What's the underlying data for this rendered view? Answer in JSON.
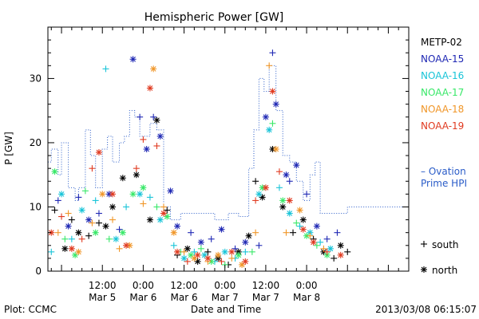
{
  "chart_data": {
    "type": "scatter",
    "title": "Hemispheric Power [GW]",
    "ylabel": "P [GW]",
    "xlabel": "Date and Time",
    "footer_left": "Plot: CCMC",
    "footer_right": "2013/03/08 06:15:07",
    "ylim": [
      0,
      38
    ],
    "xlim_hours": [
      -16,
      90
    ],
    "y_ticks": [
      0,
      10,
      20,
      30
    ],
    "x_ticks": [
      {
        "h": 0,
        "top": "12:00",
        "bottom": "Mar 5"
      },
      {
        "h": 12,
        "top": "0:00",
        "bottom": "Mar 6"
      },
      {
        "h": 24,
        "top": "12:00",
        "bottom": "Mar 6"
      },
      {
        "h": 36,
        "top": "0:00",
        "bottom": "Mar 7"
      },
      {
        "h": 48,
        "top": "12:00",
        "bottom": "Mar 7"
      },
      {
        "h": 60,
        "top": "0:00",
        "bottom": "Mar 8"
      }
    ],
    "grid": false,
    "legend_position": "right",
    "series": [
      {
        "name": "METP-02",
        "color": "#000000",
        "points": [
          {
            "x": -14,
            "y": 9.5,
            "m": "plus"
          },
          {
            "x": -11,
            "y": 3.5,
            "m": "star"
          },
          {
            "x": -9,
            "y": 8,
            "m": "plus"
          },
          {
            "x": -7,
            "y": 6,
            "m": "star"
          },
          {
            "x": -4,
            "y": 5.5,
            "m": "plus"
          },
          {
            "x": -1,
            "y": 7.5,
            "m": "plus"
          },
          {
            "x": 1,
            "y": 7,
            "m": "star"
          },
          {
            "x": 3,
            "y": 10,
            "m": "star"
          },
          {
            "x": 6,
            "y": 14.5,
            "m": "star"
          },
          {
            "x": 10,
            "y": 15,
            "m": "star"
          },
          {
            "x": 14,
            "y": 8,
            "m": "star"
          },
          {
            "x": 16,
            "y": 23.5,
            "m": "star"
          },
          {
            "x": 19,
            "y": 9.5,
            "m": "plus"
          },
          {
            "x": 22,
            "y": 2.5,
            "m": "plus"
          },
          {
            "x": 25,
            "y": 3.5,
            "m": "star"
          },
          {
            "x": 28,
            "y": 1.5,
            "m": "star"
          },
          {
            "x": 31,
            "y": 3,
            "m": "plus"
          },
          {
            "x": 34,
            "y": 2,
            "m": "star"
          },
          {
            "x": 37,
            "y": 1,
            "m": "plus"
          },
          {
            "x": 40,
            "y": 3,
            "m": "star"
          },
          {
            "x": 43,
            "y": 5.5,
            "m": "star"
          },
          {
            "x": 45,
            "y": 14,
            "m": "plus"
          },
          {
            "x": 47,
            "y": 11.5,
            "m": "star"
          },
          {
            "x": 50,
            "y": 19,
            "m": "star"
          },
          {
            "x": 53,
            "y": 10,
            "m": "star"
          },
          {
            "x": 56,
            "y": 6,
            "m": "plus"
          },
          {
            "x": 59,
            "y": 8,
            "m": "star"
          },
          {
            "x": 62,
            "y": 5,
            "m": "plus"
          },
          {
            "x": 65,
            "y": 3,
            "m": "star"
          },
          {
            "x": 68,
            "y": 2,
            "m": "plus"
          },
          {
            "x": 70,
            "y": 4,
            "m": "star"
          },
          {
            "x": 72,
            "y": 3,
            "m": "plus"
          }
        ]
      },
      {
        "name": "NOAA-15",
        "color": "#1f28b4",
        "points": [
          {
            "x": -13,
            "y": 11,
            "m": "plus"
          },
          {
            "x": -10,
            "y": 7,
            "m": "star"
          },
          {
            "x": -7,
            "y": 11.5,
            "m": "plus"
          },
          {
            "x": -4,
            "y": 8,
            "m": "star"
          },
          {
            "x": -1,
            "y": 9,
            "m": "plus"
          },
          {
            "x": 2,
            "y": 12,
            "m": "star"
          },
          {
            "x": 5,
            "y": 6.5,
            "m": "plus"
          },
          {
            "x": 9,
            "y": 33,
            "m": "star"
          },
          {
            "x": 11,
            "y": 24,
            "m": "plus"
          },
          {
            "x": 13,
            "y": 19,
            "m": "star"
          },
          {
            "x": 15,
            "y": 24,
            "m": "plus"
          },
          {
            "x": 17,
            "y": 21,
            "m": "star"
          },
          {
            "x": 20,
            "y": 12.5,
            "m": "star"
          },
          {
            "x": 22,
            "y": 7,
            "m": "star"
          },
          {
            "x": 26,
            "y": 6,
            "m": "plus"
          },
          {
            "x": 29,
            "y": 4.5,
            "m": "star"
          },
          {
            "x": 32,
            "y": 5,
            "m": "plus"
          },
          {
            "x": 35,
            "y": 6.5,
            "m": "star"
          },
          {
            "x": 39,
            "y": 3.5,
            "m": "plus"
          },
          {
            "x": 42,
            "y": 4.5,
            "m": "star"
          },
          {
            "x": 46,
            "y": 4,
            "m": "plus"
          },
          {
            "x": 48,
            "y": 24,
            "m": "star"
          },
          {
            "x": 50,
            "y": 34,
            "m": "plus"
          },
          {
            "x": 51,
            "y": 26,
            "m": "star"
          },
          {
            "x": 54,
            "y": 15,
            "m": "star"
          },
          {
            "x": 55,
            "y": 14,
            "m": "plus"
          },
          {
            "x": 57,
            "y": 16.5,
            "m": "star"
          },
          {
            "x": 60,
            "y": 12,
            "m": "plus"
          },
          {
            "x": 63,
            "y": 7,
            "m": "star"
          },
          {
            "x": 66,
            "y": 5,
            "m": "plus"
          },
          {
            "x": 69,
            "y": 6,
            "m": "plus"
          }
        ]
      },
      {
        "name": "NOAA-16",
        "color": "#18c4d8",
        "points": [
          {
            "x": -15,
            "y": 3,
            "m": "plus"
          },
          {
            "x": -12,
            "y": 12,
            "m": "star"
          },
          {
            "x": -9,
            "y": 5,
            "m": "plus"
          },
          {
            "x": -6,
            "y": 9.5,
            "m": "star"
          },
          {
            "x": -2,
            "y": 11,
            "m": "plus"
          },
          {
            "x": 1,
            "y": 31.5,
            "m": "plus"
          },
          {
            "x": 4,
            "y": 5,
            "m": "star"
          },
          {
            "x": 7,
            "y": 10,
            "m": "plus"
          },
          {
            "x": 11,
            "y": 12,
            "m": "star"
          },
          {
            "x": 14,
            "y": 11.5,
            "m": "plus"
          },
          {
            "x": 17,
            "y": 8,
            "m": "star"
          },
          {
            "x": 21,
            "y": 4,
            "m": "plus"
          },
          {
            "x": 24,
            "y": 2,
            "m": "star"
          },
          {
            "x": 27,
            "y": 3,
            "m": "plus"
          },
          {
            "x": 30,
            "y": 2.5,
            "m": "star"
          },
          {
            "x": 33,
            "y": 1.5,
            "m": "plus"
          },
          {
            "x": 36,
            "y": 3,
            "m": "star"
          },
          {
            "x": 39,
            "y": 2,
            "m": "plus"
          },
          {
            "x": 42,
            "y": 3,
            "m": "plus"
          },
          {
            "x": 46,
            "y": 12,
            "m": "star"
          },
          {
            "x": 49,
            "y": 22,
            "m": "star"
          },
          {
            "x": 52,
            "y": 13,
            "m": "plus"
          },
          {
            "x": 55,
            "y": 9,
            "m": "star"
          },
          {
            "x": 58,
            "y": 7,
            "m": "plus"
          },
          {
            "x": 61,
            "y": 6,
            "m": "star"
          },
          {
            "x": 64,
            "y": 4.5,
            "m": "plus"
          },
          {
            "x": 67,
            "y": 3.5,
            "m": "star"
          }
        ]
      },
      {
        "name": "NOAA-17",
        "color": "#38e868",
        "points": [
          {
            "x": -14,
            "y": 15.5,
            "m": "star"
          },
          {
            "x": -11,
            "y": 5,
            "m": "plus"
          },
          {
            "x": -8,
            "y": 2.5,
            "m": "star"
          },
          {
            "x": -5,
            "y": 12.5,
            "m": "plus"
          },
          {
            "x": -2,
            "y": 6,
            "m": "star"
          },
          {
            "x": 2,
            "y": 5,
            "m": "plus"
          },
          {
            "x": 6,
            "y": 6,
            "m": "star"
          },
          {
            "x": 9,
            "y": 12,
            "m": "star"
          },
          {
            "x": 12,
            "y": 13,
            "m": "star"
          },
          {
            "x": 16,
            "y": 10,
            "m": "plus"
          },
          {
            "x": 19,
            "y": 8.5,
            "m": "star"
          },
          {
            "x": 23,
            "y": 3,
            "m": "plus"
          },
          {
            "x": 26,
            "y": 2.5,
            "m": "star"
          },
          {
            "x": 29,
            "y": 3.5,
            "m": "plus"
          },
          {
            "x": 32,
            "y": 1.5,
            "m": "star"
          },
          {
            "x": 36,
            "y": 1,
            "m": "plus"
          },
          {
            "x": 40,
            "y": 2.5,
            "m": "star"
          },
          {
            "x": 44,
            "y": 3,
            "m": "plus"
          },
          {
            "x": 47,
            "y": 13,
            "m": "star"
          },
          {
            "x": 50,
            "y": 23,
            "m": "plus"
          },
          {
            "x": 53,
            "y": 11,
            "m": "star"
          },
          {
            "x": 57,
            "y": 7.5,
            "m": "plus"
          },
          {
            "x": 60,
            "y": 5.5,
            "m": "star"
          },
          {
            "x": 63,
            "y": 4,
            "m": "plus"
          },
          {
            "x": 66,
            "y": 2.5,
            "m": "star"
          }
        ]
      },
      {
        "name": "NOAA-18",
        "color": "#f09628",
        "points": [
          {
            "x": -13,
            "y": 6,
            "m": "plus"
          },
          {
            "x": -10,
            "y": 9,
            "m": "plus"
          },
          {
            "x": -7,
            "y": 3,
            "m": "star"
          },
          {
            "x": -3,
            "y": 7.5,
            "m": "plus"
          },
          {
            "x": 0,
            "y": 12,
            "m": "star"
          },
          {
            "x": 3,
            "y": 8,
            "m": "plus"
          },
          {
            "x": 5,
            "y": 3.5,
            "m": "plus"
          },
          {
            "x": 8,
            "y": 4,
            "m": "star"
          },
          {
            "x": 12,
            "y": 10.5,
            "m": "plus"
          },
          {
            "x": 15,
            "y": 31.5,
            "m": "star"
          },
          {
            "x": 18,
            "y": 10,
            "m": "plus"
          },
          {
            "x": 21,
            "y": 6,
            "m": "star"
          },
          {
            "x": 24,
            "y": 3,
            "m": "plus"
          },
          {
            "x": 27,
            "y": 2,
            "m": "star"
          },
          {
            "x": 31,
            "y": 1.5,
            "m": "plus"
          },
          {
            "x": 34,
            "y": 2.5,
            "m": "star"
          },
          {
            "x": 38,
            "y": 2,
            "m": "plus"
          },
          {
            "x": 41,
            "y": 1,
            "m": "star"
          },
          {
            "x": 45,
            "y": 6,
            "m": "plus"
          },
          {
            "x": 49,
            "y": 32,
            "m": "plus"
          },
          {
            "x": 51,
            "y": 19,
            "m": "star"
          },
          {
            "x": 54,
            "y": 6,
            "m": "plus"
          },
          {
            "x": 58,
            "y": 9.5,
            "m": "star"
          },
          {
            "x": 61,
            "y": 5.5,
            "m": "plus"
          },
          {
            "x": 65,
            "y": 3.5,
            "m": "plus"
          }
        ]
      },
      {
        "name": "NOAA-19",
        "color": "#e03a20",
        "points": [
          {
            "x": -15,
            "y": 6,
            "m": "star"
          },
          {
            "x": -12,
            "y": 8.5,
            "m": "plus"
          },
          {
            "x": -9,
            "y": 3.5,
            "m": "star"
          },
          {
            "x": -6,
            "y": 5,
            "m": "plus"
          },
          {
            "x": -3,
            "y": 16,
            "m": "plus"
          },
          {
            "x": -1,
            "y": 18.5,
            "m": "star"
          },
          {
            "x": 3,
            "y": 12,
            "m": "star"
          },
          {
            "x": 7,
            "y": 4,
            "m": "star"
          },
          {
            "x": 10,
            "y": 16,
            "m": "plus"
          },
          {
            "x": 12,
            "y": 20.5,
            "m": "plus"
          },
          {
            "x": 14,
            "y": 28.5,
            "m": "star"
          },
          {
            "x": 16,
            "y": 19.5,
            "m": "plus"
          },
          {
            "x": 18,
            "y": 9,
            "m": "star"
          },
          {
            "x": 22,
            "y": 3,
            "m": "star"
          },
          {
            "x": 25,
            "y": 1.5,
            "m": "plus"
          },
          {
            "x": 28,
            "y": 2.5,
            "m": "star"
          },
          {
            "x": 31,
            "y": 2,
            "m": "star"
          },
          {
            "x": 35,
            "y": 1.5,
            "m": "plus"
          },
          {
            "x": 38,
            "y": 3,
            "m": "star"
          },
          {
            "x": 42,
            "y": 1.5,
            "m": "star"
          },
          {
            "x": 45,
            "y": 11,
            "m": "plus"
          },
          {
            "x": 48,
            "y": 13,
            "m": "star"
          },
          {
            "x": 50,
            "y": 28,
            "m": "star"
          },
          {
            "x": 52,
            "y": 15.5,
            "m": "plus"
          },
          {
            "x": 55,
            "y": 11,
            "m": "star"
          },
          {
            "x": 59,
            "y": 6.5,
            "m": "star"
          },
          {
            "x": 62,
            "y": 4.5,
            "m": "star"
          },
          {
            "x": 66,
            "y": 3,
            "m": "plus"
          },
          {
            "x": 70,
            "y": 2.5,
            "m": "star"
          }
        ]
      }
    ],
    "ovation": {
      "name": "Ovation Prime HPI",
      "name_lines": [
        "– Ovation",
        "Prime HPI"
      ],
      "color": "#2a5cc8",
      "steps": [
        {
          "x": -16,
          "y": 17
        },
        {
          "x": -15,
          "y": 19
        },
        {
          "x": -13,
          "y": 15
        },
        {
          "x": -12,
          "y": 20
        },
        {
          "x": -10,
          "y": 13
        },
        {
          "x": -8,
          "y": 11
        },
        {
          "x": -7,
          "y": 13
        },
        {
          "x": -5,
          "y": 22
        },
        {
          "x": -3.5,
          "y": 18
        },
        {
          "x": -2,
          "y": 13
        },
        {
          "x": 0,
          "y": 19
        },
        {
          "x": 1.5,
          "y": 21
        },
        {
          "x": 3,
          "y": 17
        },
        {
          "x": 5,
          "y": 20
        },
        {
          "x": 6.5,
          "y": 21
        },
        {
          "x": 8,
          "y": 25
        },
        {
          "x": 9.5,
          "y": 24
        },
        {
          "x": 11,
          "y": 21
        },
        {
          "x": 14,
          "y": 23
        },
        {
          "x": 16,
          "y": 22
        },
        {
          "x": 18,
          "y": 10
        },
        {
          "x": 20,
          "y": 8
        },
        {
          "x": 23,
          "y": 9
        },
        {
          "x": 29,
          "y": 9
        },
        {
          "x": 33,
          "y": 8
        },
        {
          "x": 37,
          "y": 9
        },
        {
          "x": 40,
          "y": 8.5
        },
        {
          "x": 43,
          "y": 16
        },
        {
          "x": 44.5,
          "y": 22
        },
        {
          "x": 46,
          "y": 30
        },
        {
          "x": 47.5,
          "y": 28
        },
        {
          "x": 49,
          "y": 32
        },
        {
          "x": 51,
          "y": 25
        },
        {
          "x": 53,
          "y": 18
        },
        {
          "x": 55,
          "y": 17
        },
        {
          "x": 57,
          "y": 14
        },
        {
          "x": 59,
          "y": 11
        },
        {
          "x": 61,
          "y": 15
        },
        {
          "x": 62.5,
          "y": 17
        },
        {
          "x": 64,
          "y": 9
        },
        {
          "x": 70,
          "y": 9
        },
        {
          "x": 72,
          "y": 10
        }
      ]
    },
    "marker_legend": [
      {
        "marker": "plus",
        "label": "south"
      },
      {
        "marker": "star",
        "label": "north"
      }
    ]
  }
}
